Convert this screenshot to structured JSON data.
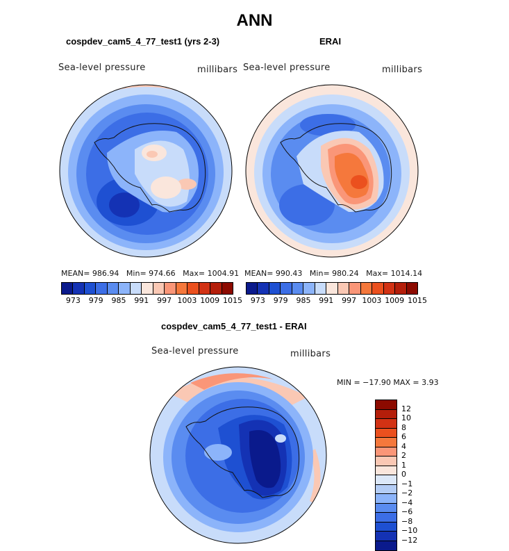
{
  "title": "ANN",
  "panels": [
    {
      "title": "cospdev_cam5_4_77_test1 (yrs 2-3)",
      "variable": "Sea-level pressure",
      "units": "millibars",
      "stats": {
        "mean_label": "MEAN=",
        "mean": "986.94",
        "min_label": "Min=",
        "min": "974.66",
        "max_label": "Max=",
        "max": "1004.91"
      }
    },
    {
      "title": "ERAI",
      "variable": "Sea-level pressure",
      "units": "millibars",
      "stats": {
        "mean_label": "MEAN=",
        "mean": "990.43",
        "min_label": "Min=",
        "min": "980.24",
        "max_label": "Max=",
        "max": "1014.14"
      }
    }
  ],
  "diff_panel": {
    "title": "cospdev_cam5_4_77_test1 - ERAI",
    "variable": "Sea-level pressure",
    "units": "millibars",
    "minmax": "MIN = −17.90 MAX =    3.93"
  },
  "colorbar_top": {
    "colors": [
      "#0a1a8c",
      "#1432b4",
      "#1e50d2",
      "#3c6ee6",
      "#5a8cf0",
      "#8cb4fa",
      "#c8dcfa",
      "#fae6dc",
      "#fac8b4",
      "#fa9678",
      "#f5783c",
      "#eb501e",
      "#d23214",
      "#b41e0a",
      "#8c0a00"
    ],
    "tick_labels": [
      "973",
      "979",
      "985",
      "991",
      "997",
      "1003",
      "1009",
      "1015"
    ]
  },
  "colorbar_diff": {
    "colors": [
      "#8c0a00",
      "#b41e0a",
      "#d23214",
      "#eb501e",
      "#f5783c",
      "#fa9678",
      "#fac8b4",
      "#fae6dc",
      "#dce8f8",
      "#b4cdf5",
      "#8cb4fa",
      "#5a8cf0",
      "#3c6ee6",
      "#1e50d2",
      "#1432b4",
      "#0a1a8c"
    ],
    "tick_labels": [
      "12",
      "10",
      "8",
      "6",
      "4",
      "2",
      "1",
      "0",
      "−1",
      "−2",
      "−4",
      "−6",
      "−8",
      "−10",
      "−12"
    ]
  },
  "chart_data": [
    {
      "type": "heatmap",
      "title": "cospdev_cam5_4_77_test1 (yrs 2-3)",
      "field": "Sea-level pressure",
      "units": "millibars",
      "projection": "south polar stereographic",
      "mean": 986.94,
      "min": 974.66,
      "max": 1004.91,
      "contour_levels": [
        973,
        976,
        979,
        982,
        985,
        988,
        991,
        994,
        997,
        1000,
        1003,
        1006,
        1009,
        1012,
        1015
      ]
    },
    {
      "type": "heatmap",
      "title": "ERAI",
      "field": "Sea-level pressure",
      "units": "millibars",
      "projection": "south polar stereographic",
      "mean": 990.43,
      "min": 980.24,
      "max": 1014.14,
      "contour_levels": [
        973,
        976,
        979,
        982,
        985,
        988,
        991,
        994,
        997,
        1000,
        1003,
        1006,
        1009,
        1012,
        1015
      ]
    },
    {
      "type": "heatmap",
      "title": "cospdev_cam5_4_77_test1 - ERAI",
      "field": "Sea-level pressure",
      "units": "millibars",
      "projection": "south polar stereographic",
      "min": -17.9,
      "max": 3.93,
      "contour_levels": [
        -12,
        -10,
        -8,
        -6,
        -4,
        -2,
        -1,
        0,
        1,
        2,
        4,
        6,
        8,
        10,
        12
      ]
    }
  ]
}
